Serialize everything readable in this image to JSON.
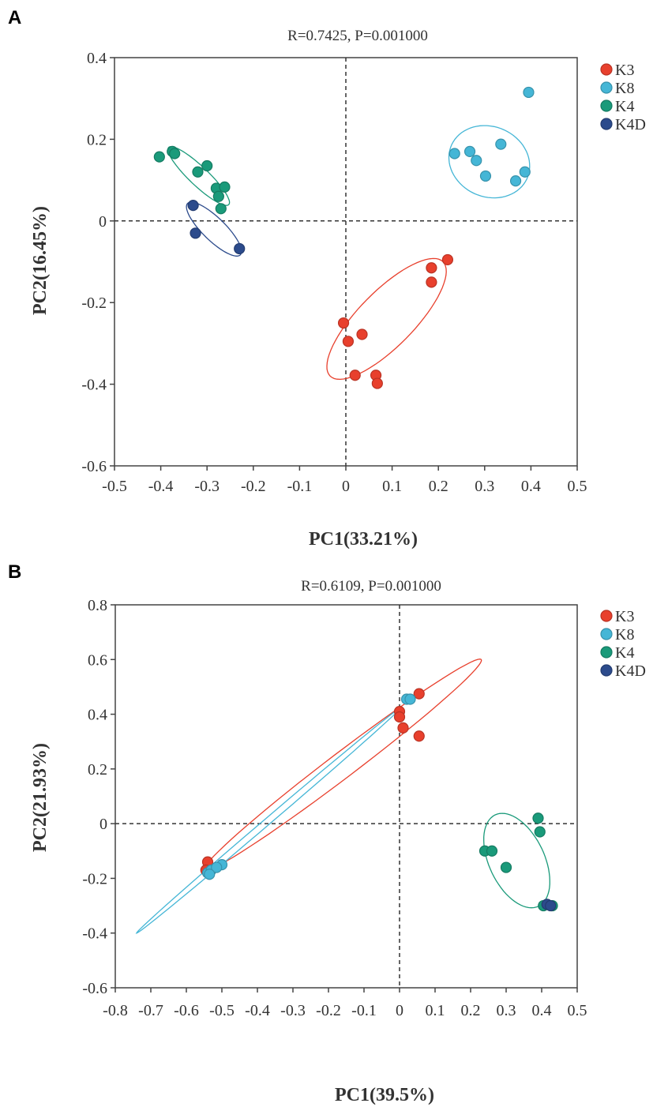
{
  "chart_data": [
    {
      "type": "scatter",
      "panel_label": "A",
      "title": "R=0.7425, P=0.001000",
      "xlabel": "PC1(33.21%)",
      "ylabel": "PC2(16.45%)",
      "xlim": [
        -0.5,
        0.5
      ],
      "ylim": [
        -0.6,
        0.4
      ],
      "xticks": [
        "-0.5",
        "-0.4",
        "-0.3",
        "-0.2",
        "-0.1",
        "0",
        "0.1",
        "0.2",
        "0.3",
        "0.4",
        "0.5"
      ],
      "yticks": [
        "0.4",
        "0.2",
        "0",
        "-0.2",
        "-0.4",
        "-0.6"
      ],
      "legend_position": "top-right",
      "series": [
        {
          "name": "K3",
          "color": "#e8402d",
          "points": [
            [
              0.22,
              -0.095
            ],
            [
              0.185,
              -0.115
            ],
            [
              0.185,
              -0.15
            ],
            [
              -0.005,
              -0.25
            ],
            [
              0.005,
              -0.295
            ],
            [
              0.035,
              -0.278
            ],
            [
              0.02,
              -0.378
            ],
            [
              0.065,
              -0.378
            ],
            [
              0.068,
              -0.398
            ]
          ],
          "ellipse": {
            "center": [
              0.088,
              -0.24
            ],
            "major": [
              0.122,
              0.14
            ],
            "minor": [
              0.042,
              -0.048
            ]
          }
        },
        {
          "name": "K8",
          "color": "#45b6d6",
          "points": [
            [
              0.395,
              0.315
            ],
            [
              0.235,
              0.165
            ],
            [
              0.268,
              0.17
            ],
            [
              0.282,
              0.148
            ],
            [
              0.302,
              0.11
            ],
            [
              0.335,
              0.188
            ],
            [
              0.367,
              0.098
            ],
            [
              0.387,
              0.12
            ]
          ],
          "ellipse": {
            "center": [
              0.31,
              0.145
            ],
            "major": [
              0.085,
              0.01
            ],
            "minor": [
              -0.02,
              0.088
            ]
          }
        },
        {
          "name": "K4",
          "color": "#1a9a7a",
          "points": [
            [
              -0.403,
              0.157
            ],
            [
              -0.375,
              0.17
            ],
            [
              -0.37,
              0.165
            ],
            [
              -0.32,
              0.12
            ],
            [
              -0.3,
              0.135
            ],
            [
              -0.28,
              0.08
            ],
            [
              -0.262,
              0.083
            ],
            [
              -0.275,
              0.06
            ],
            [
              -0.27,
              0.03
            ]
          ],
          "ellipse": {
            "center": [
              -0.318,
              0.11
            ],
            "major": [
              0.065,
              -0.07
            ],
            "minor": [
              -0.014,
              -0.017
            ]
          }
        },
        {
          "name": "K4D",
          "color": "#2c4b8c",
          "points": [
            [
              -0.33,
              0.038
            ],
            [
              -0.325,
              -0.03
            ],
            [
              -0.23,
              -0.068
            ]
          ],
          "ellipse": {
            "center": [
              -0.285,
              -0.02
            ],
            "major": [
              0.057,
              -0.063
            ],
            "minor": [
              -0.017,
              -0.02
            ]
          }
        }
      ]
    },
    {
      "type": "scatter",
      "panel_label": "B",
      "title": "R=0.6109, P=0.001000",
      "xlabel": "PC1(39.5%)",
      "ylabel": "PC2(21.93%)",
      "xlim": [
        -0.8,
        0.5
      ],
      "ylim": [
        -0.6,
        0.8
      ],
      "xticks": [
        "-0.8",
        "-0.7",
        "-0.6",
        "-0.5",
        "-0.4",
        "-0.3",
        "-0.2",
        "-0.1",
        "0",
        "0.1",
        "0.2",
        "0.3",
        "0.4",
        "0.5"
      ],
      "yticks": [
        "0.8",
        "0.6",
        "0.4",
        "0.2",
        "0",
        "-0.2",
        "-0.4",
        "-0.6"
      ],
      "legend_position": "top-right",
      "series": [
        {
          "name": "K3",
          "color": "#e8402d",
          "points": [
            [
              0.055,
              0.475
            ],
            [
              0.0,
              0.41
            ],
            [
              0.0,
              0.39
            ],
            [
              0.01,
              0.35
            ],
            [
              0.055,
              0.32
            ],
            [
              -0.54,
              -0.14
            ],
            [
              -0.545,
              -0.17
            ]
          ],
          "ellipse": {
            "center": [
              -0.16,
              0.215
            ],
            "major": [
              0.39,
              0.385
            ],
            "minor": [
              0.0215,
              -0.037
            ]
          }
        },
        {
          "name": "K8",
          "color": "#45b6d6",
          "points": [
            [
              0.02,
              0.455
            ],
            [
              0.03,
              0.455
            ],
            [
              -0.54,
              -0.18
            ],
            [
              -0.53,
              -0.17
            ],
            [
              -0.5,
              -0.15
            ],
            [
              -0.515,
              -0.16
            ],
            [
              -0.535,
              -0.185
            ]
          ],
          "ellipse": {
            "center": [
              -0.37,
              0.01
            ],
            "major": [
              0.37,
              0.41
            ],
            "minor": [
              0.006,
              -0.009
            ]
          }
        },
        {
          "name": "K4",
          "color": "#1a9a7a",
          "points": [
            [
              0.39,
              0.02
            ],
            [
              0.395,
              -0.03
            ],
            [
              0.24,
              -0.1
            ],
            [
              0.26,
              -0.1
            ],
            [
              0.3,
              -0.16
            ],
            [
              0.405,
              -0.3
            ],
            [
              0.43,
              -0.3
            ]
          ],
          "ellipse": {
            "center": [
              0.33,
              -0.135
            ],
            "major": [
              0.055,
              -0.17
            ],
            "minor": [
              0.075,
              0.03
            ]
          }
        },
        {
          "name": "K4D",
          "color": "#2c4b8c",
          "points": [
            [
              0.415,
              -0.295
            ],
            [
              0.425,
              -0.3
            ]
          ]
        }
      ]
    }
  ]
}
